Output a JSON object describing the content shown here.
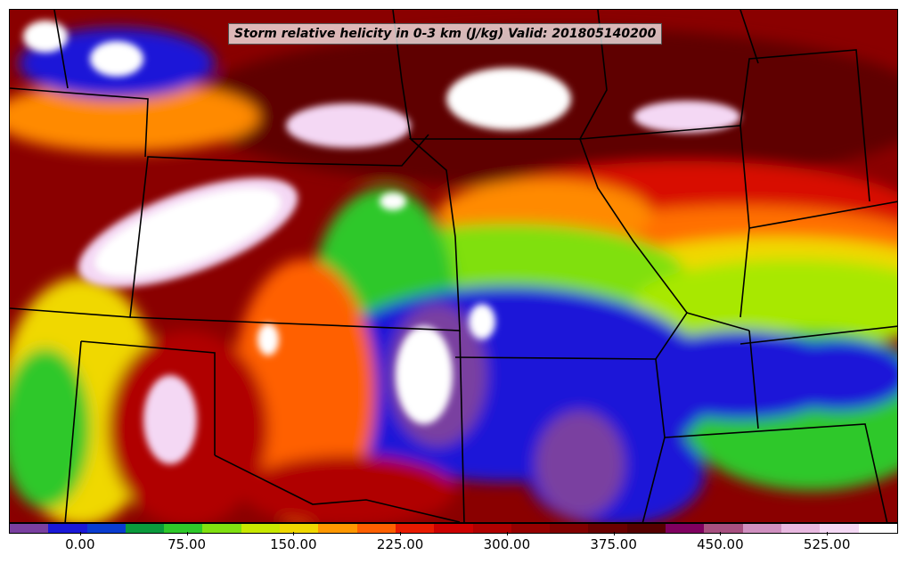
{
  "title": "Storm relative helicity in 0-3 km (J/kg) Valid: 201805140200",
  "colorbar": {
    "colors": [
      "#7a3fa0",
      "#1a18d8",
      "#0a3cd0",
      "#0a9a3c",
      "#2ec82a",
      "#80e010",
      "#c8e800",
      "#f0d800",
      "#ff9800",
      "#ff6000",
      "#e81a00",
      "#cc0000",
      "#b00000",
      "#960000",
      "#820000",
      "#6a0000",
      "#560000",
      "#800060",
      "#a85080",
      "#d090c0",
      "#e8b8e0",
      "#f4d8f4",
      "#ffffff"
    ],
    "tick_labels": [
      "0.00",
      "75.00",
      "150.00",
      "225.00",
      "300.00",
      "375.00",
      "450.00",
      "525.00"
    ],
    "tick_values": [
      0,
      75,
      150,
      225,
      300,
      375,
      450,
      525
    ],
    "range": [
      -50,
      575
    ]
  }
}
